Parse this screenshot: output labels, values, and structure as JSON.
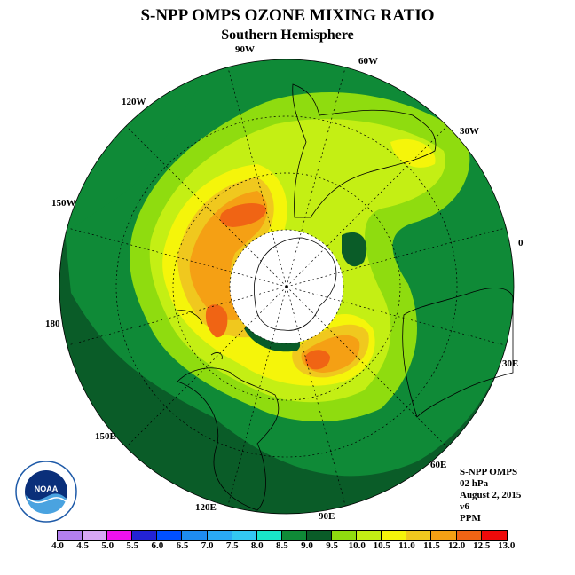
{
  "title": "S-NPP OMPS OZONE MIXING RATIO",
  "subtitle": "Southern Hemisphere",
  "longitude_labels": [
    {
      "text": "90W"
    },
    {
      "text": "60W"
    },
    {
      "text": "120W"
    },
    {
      "text": "30W"
    },
    {
      "text": "150W"
    },
    {
      "text": "0"
    },
    {
      "text": "180"
    },
    {
      "text": "30E"
    },
    {
      "text": "150E"
    },
    {
      "text": "60E"
    },
    {
      "text": "120E"
    },
    {
      "text": "90E"
    }
  ],
  "info": {
    "instrument": "S-NPP OMPS",
    "level": "02 hPa",
    "date": "August 2, 2015",
    "version": "v6",
    "units": "PPM"
  },
  "logo": {
    "text": "NOAA",
    "ring_text": "NATIONAL OCEANIC AND ATMOSPHERIC ADMINISTRATION",
    "bottom_text": "U.S. DEPARTMENT OF COMMERCE"
  },
  "colorbar": {
    "ticks": [
      "4.0",
      "4.5",
      "5.0",
      "5.5",
      "6.0",
      "6.5",
      "7.0",
      "7.5",
      "8.0",
      "8.5",
      "9.0",
      "9.5",
      "10.0",
      "10.5",
      "11.0",
      "11.5",
      "12.0",
      "12.5",
      "13.0"
    ],
    "colors": [
      "#b27fef",
      "#d7a6f5",
      "#ee12ee",
      "#2323d6",
      "#0050ff",
      "#1e8cf0",
      "#2aaaf5",
      "#33c8f2",
      "#19e6c8",
      "#0f8a37",
      "#0a5c28",
      "#8fdc0f",
      "#c4ef14",
      "#f5f50a",
      "#f0c81e",
      "#f5a014",
      "#f06414",
      "#ee0a0a",
      "#965a3c"
    ]
  },
  "map_colors": {
    "outer": "#0a5c28",
    "mid": "#0f8a37",
    "light_green": "#8fdc0f",
    "yellow_green": "#c4ef14",
    "yellow": "#f5f50a",
    "gold": "#f0c81e",
    "orange": "#f5a014",
    "red_orange": "#f06414",
    "pole": "#ffffff"
  }
}
